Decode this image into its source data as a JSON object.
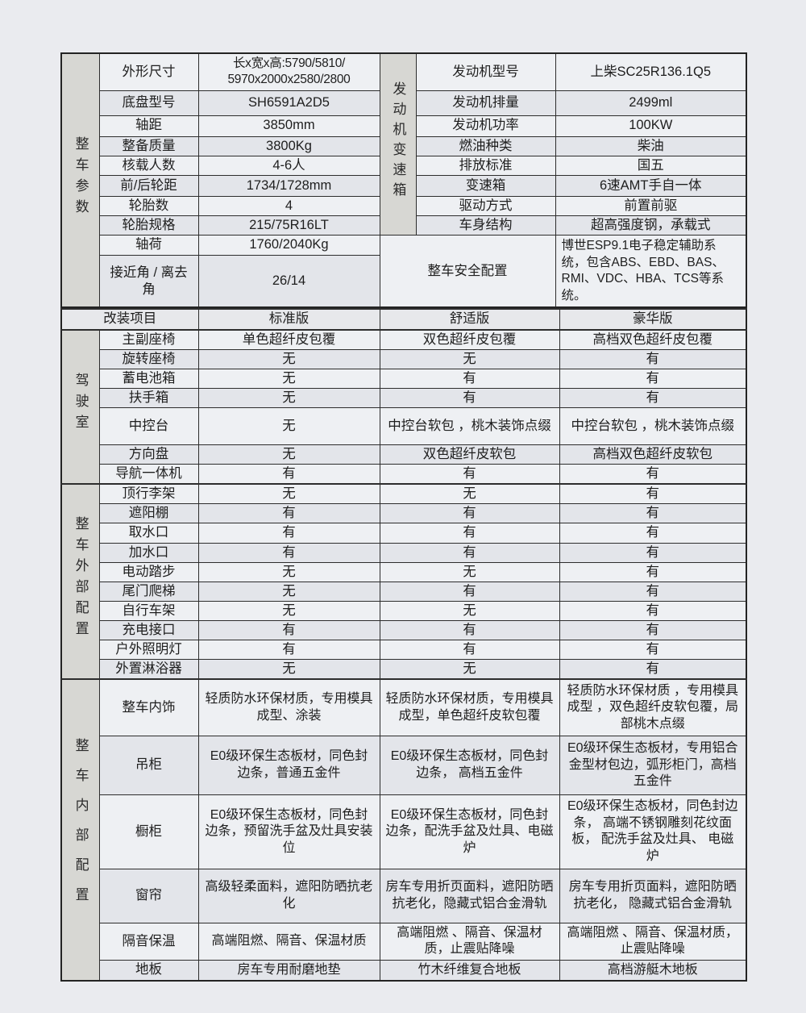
{
  "top": {
    "left_section": "整车参数",
    "right_section": "发动机变速箱",
    "left_rows": [
      {
        "label": "外形尺寸",
        "value": "长x宽x高:5790/5810/\n5970x2000x2580/2800"
      },
      {
        "label": "底盘型号",
        "value": "SH6591A2D5"
      },
      {
        "label": "轴距",
        "value": "3850mm"
      },
      {
        "label": "整备质量",
        "value": "3800Kg"
      },
      {
        "label": "核载人数",
        "value": "4-6人"
      },
      {
        "label": "前/后轮距",
        "value": "1734/1728mm"
      },
      {
        "label": "轮胎数",
        "value": "4"
      },
      {
        "label": "轮胎规格",
        "value": "215/75R16LT"
      },
      {
        "label": "轴荷",
        "value": "1760/2040Kg"
      },
      {
        "label": "接近角 / 离去角",
        "value": "26/14"
      }
    ],
    "right_rows": [
      {
        "label": "发动机型号",
        "value": "上柴SC25R136.1Q5"
      },
      {
        "label": "发动机排量",
        "value": "2499ml"
      },
      {
        "label": "发动机功率",
        "value": "100KW"
      },
      {
        "label": "燃油种类",
        "value": "柴油"
      },
      {
        "label": "排放标准",
        "value": "国五"
      },
      {
        "label": "变速箱",
        "value": "6速AMT手自一体"
      },
      {
        "label": "驱动方式",
        "value": "前置前驱"
      },
      {
        "label": "车身结构",
        "value": "超高强度钢，承载式"
      }
    ],
    "safety": {
      "label": "整车安全配置",
      "value": "博世ESP9.1电子稳定辅助系统，包含ABS、EBD、BAS、RMI、VDC、HBA、TCS等系统。"
    }
  },
  "header": {
    "item": "改装项目",
    "std": "标准版",
    "comfort": "舒适版",
    "luxury": "豪华版"
  },
  "sections": [
    {
      "name": "驾驶室",
      "rows": [
        [
          "主副座椅",
          "单色超纤皮包覆",
          "双色超纤皮包覆",
          "高档双色超纤皮包覆"
        ],
        [
          "旋转座椅",
          "无",
          "无",
          "有"
        ],
        [
          "蓄电池箱",
          "无",
          "有",
          "有"
        ],
        [
          "扶手箱",
          "无",
          "有",
          "有"
        ],
        [
          "中控台",
          "无",
          "中控台软包 ，桃木装饰点缀",
          "中控台软包 ，桃木装饰点缀"
        ],
        [
          "方向盘",
          "无",
          "双色超纤皮软包",
          "高档双色超纤皮软包"
        ],
        [
          "导航一体机",
          "有",
          "有",
          "有"
        ]
      ]
    },
    {
      "name": "整车外部配置",
      "rows": [
        [
          "顶行李架",
          "无",
          "无",
          "有"
        ],
        [
          "遮阳棚",
          "有",
          "有",
          "有"
        ],
        [
          "取水口",
          "有",
          "有",
          "有"
        ],
        [
          "加水口",
          "有",
          "有",
          "有"
        ],
        [
          "电动踏步",
          "无",
          "无",
          "有"
        ],
        [
          "尾门爬梯",
          "无",
          "有",
          "有"
        ],
        [
          "自行车架",
          "无",
          "无",
          "有"
        ],
        [
          "充电接口",
          "有",
          "有",
          "有"
        ],
        [
          "户外照明灯",
          "有",
          "有",
          "有"
        ],
        [
          "外置淋浴器",
          "无",
          "无",
          "有"
        ]
      ]
    },
    {
      "name": "整车内部配置",
      "rows": [
        [
          "整车内饰",
          "轻质防水环保材质，专用模具成型、涂装",
          "轻质防水环保材质，专用模具成型，单色超纤皮软包覆",
          "轻质防水环保材质 ，专用模具成型 ，双色超纤皮软包覆，局部桃木点缀"
        ],
        [
          "吊柜",
          "E0级环保生态板材，同色封边条，普通五金件",
          "E0级环保生态板材，同色封边条， 高档五金件",
          "E0级环保生态板材，专用铝合金型材包边，弧形柜门，高档五金件"
        ],
        [
          "橱柜",
          "E0级环保生态板材，同色封边条，预留洗手盆及灶具安装位",
          "E0级环保生态板材，同色封边条，配洗手盆及灶具、电磁炉",
          "E0级环保生态板材，同色封边条， 高端不锈钢雕刻花纹面板， 配洗手盆及灶具、 电磁炉"
        ],
        [
          "窗帘",
          "高级轻柔面料，遮阳防晒抗老化",
          "房车专用折页面料，遮阳防晒抗老化，隐藏式铝合金滑轨",
          "房车专用折页面料，遮阳防晒抗老化， 隐藏式铝合金滑轨"
        ],
        [
          "隔音保温",
          "高端阻燃、隔音、保温材质",
          "高端阻燃 、隔音、保温材质，止震贴降噪",
          "高端阻燃 、隔音、保温材质，止震贴降噪"
        ],
        [
          "地板",
          "房车专用耐磨地垫",
          "竹木纤维复合地板",
          "高档游艇木地板"
        ]
      ]
    }
  ],
  "colors": {
    "page_bg": "#eaebef",
    "cell_light": "#eef0f3",
    "cell_dark": "#e3e5ea",
    "section_bg": "#d7d7d3",
    "border": "#2d2d2d"
  }
}
